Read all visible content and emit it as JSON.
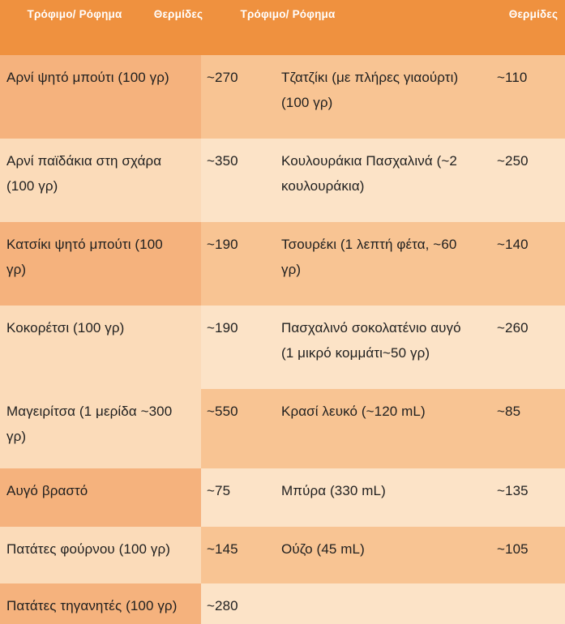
{
  "colors": {
    "header-bg": "#EF913F",
    "peach-left": "#F5B27D",
    "cream-left": "#FBDBB9",
    "peach-right": "#F8C493",
    "cream-right": "#FCE3C7",
    "header-text": "#FFFFFF",
    "body-text": "#1F1F1F"
  },
  "chart_data": {
    "type": "table",
    "title": "",
    "columns": [
      "Τρόφιμο/ Ρόφημα",
      "Θερμίδες",
      "Τρόφιμο/ Ρόφημα",
      "Θερμίδες"
    ],
    "rows": [
      [
        "Αρνί ψητό μπούτι (100 γρ)",
        "~270",
        "Τζατζίκι (με πλήρες γιαούρτι) (100 γρ)",
        "~110"
      ],
      [
        "Αρνί παϊδάκια στη σχάρα (100 γρ)",
        "~350",
        "Κουλουράκια Πασχαλινά (~2 κουλουράκια)",
        "~250"
      ],
      [
        "Κατσίκι ψητό μπούτι (100 γρ)",
        "~190",
        "Τσουρέκι (1 λεπτή φέτα, ~60 γρ)",
        "~140"
      ],
      [
        "Κοκορέτσι (100 γρ)",
        "~190",
        "Πασχαλινό σοκολατένιο αυγό (1 μικρό κομμάτι~50 γρ)",
        "~260"
      ],
      [
        "Μαγειρίτσα (1 μερίδα ~300 γρ)",
        "~550",
        "Κρασί λευκό (~120 mL)",
        "~85"
      ],
      [
        "Αυγό βραστό",
        "~75",
        "Μπύρα (330 mL)",
        "~135"
      ],
      [
        "Πατάτες φούρνου (100 γρ)",
        "~145",
        "Ούζο (45 mL)",
        "~105"
      ],
      [
        "Πατάτες τηγανητές (100 γρ)",
        "~280",
        "",
        ""
      ]
    ]
  }
}
